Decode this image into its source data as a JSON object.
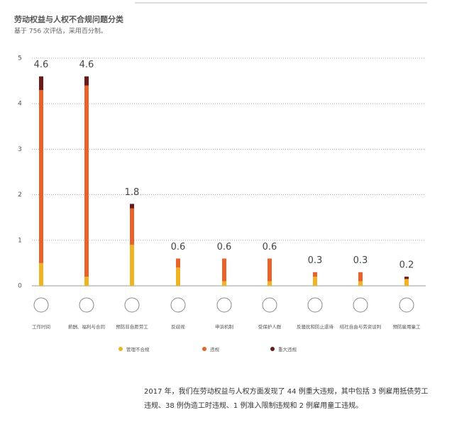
{
  "chart_data": {
    "type": "stacked_bar",
    "title": "劳动权益与人权不合规问题分类",
    "subtitle": "基于 756 次评估，采用百分制。",
    "categories": [
      "工作时间",
      "薪酬、福利与合同",
      "预防非自愿劳工",
      "反歧视",
      "申诉机制",
      "受保护人群",
      "反骚扰和防止虐待",
      "结社自由与劳资谈判",
      "预防雇用童工"
    ],
    "series": [
      {
        "name": "管理不合规",
        "color": "#f0b323",
        "values": [
          0.5,
          0.2,
          0.9,
          0.4,
          0.1,
          0.1,
          0.2,
          0.1,
          0.15
        ]
      },
      {
        "name": "违规",
        "color": "#e8622a",
        "values": [
          3.8,
          4.2,
          0.8,
          0.2,
          0.5,
          0.5,
          0.1,
          0.2,
          0
        ]
      },
      {
        "name": "重大违规",
        "color": "#6b1a1a",
        "values": [
          0.3,
          0.2,
          0.1,
          0,
          0,
          0,
          0,
          0,
          0.05
        ]
      }
    ],
    "totals": [
      4.6,
      4.6,
      1.8,
      0.6,
      0.6,
      0.6,
      0.3,
      0.3,
      0.2
    ],
    "ylim": [
      0,
      5
    ],
    "yticks": [
      0,
      1,
      2,
      3,
      4,
      5
    ],
    "grid": true,
    "footnote": "2017 年，我们在劳动权益与人权方面发现了 44 例重大违规，其中包括 3 例雇用抵债劳工违规、38 例伪造工时违规、1 例准入限制违规和 2 例雇用童工违规。"
  }
}
